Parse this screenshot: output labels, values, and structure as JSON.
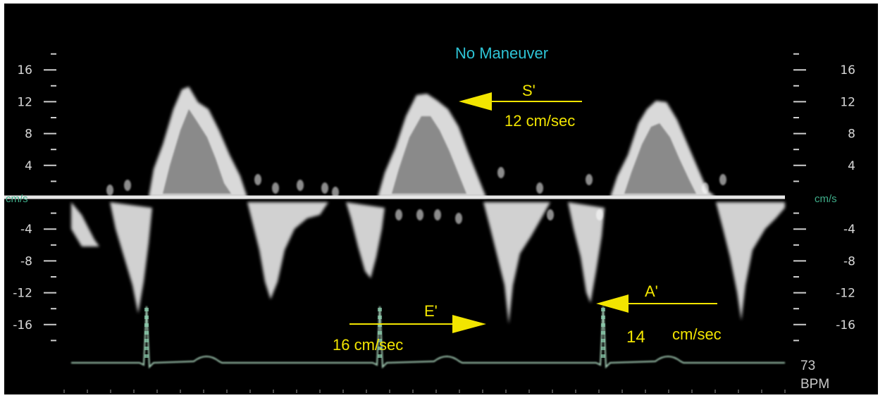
{
  "title": "No Maneuver",
  "scale": {
    "unit": "cm/s",
    "left_ticks": [
      {
        "value": 16,
        "label": "16"
      },
      {
        "value": 12,
        "label": "12"
      },
      {
        "value": 8,
        "label": "8"
      },
      {
        "value": 4,
        "label": "4"
      },
      {
        "value": -4,
        "label": "-4"
      },
      {
        "value": -8,
        "label": "-8"
      },
      {
        "value": -12,
        "label": "-12"
      },
      {
        "value": -16,
        "label": "-16"
      }
    ],
    "right_ticks": [
      {
        "value": 16,
        "label": "16"
      },
      {
        "value": 12,
        "label": "12"
      },
      {
        "value": 8,
        "label": "8"
      },
      {
        "value": 4,
        "label": "4"
      },
      {
        "value": -4,
        "label": "-4"
      },
      {
        "value": -8,
        "label": "-8"
      },
      {
        "value": -12,
        "label": "-12"
      },
      {
        "value": -16,
        "label": "-16"
      }
    ]
  },
  "annotations": {
    "s_prime": {
      "label": "S'",
      "value": "12 cm/sec"
    },
    "e_prime": {
      "label": "E'",
      "value": "16 cm/sec"
    },
    "a_prime": {
      "label": "A'",
      "value_number": "14",
      "value_unit": "cm/sec"
    }
  },
  "heart_rate": {
    "value": "73",
    "unit": "BPM"
  },
  "colors": {
    "background": "#000000",
    "title": "#2ec4d6",
    "annotation": "#f2e500",
    "scale_text": "#d8d8d8",
    "unit_text": "#3fae8a",
    "baseline": "#e6e6e6",
    "ecg": "#b8e6cc"
  }
}
